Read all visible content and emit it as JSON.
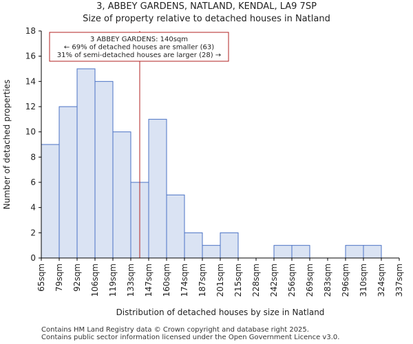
{
  "title_line1": "3, ABBEY GARDENS, NATLAND, KENDAL, LA9 7SP",
  "title_line2": "Size of property relative to detached houses in Natland",
  "footer_line1": "Contains HM Land Registry data © Crown copyright and database right 2025.",
  "footer_line2": "Contains public sector information licensed under the Open Government Licence v3.0.",
  "chart_data": {
    "type": "bar",
    "xlabel": "Distribution of detached houses by size in Natland",
    "ylabel": "Number of detached properties",
    "ylim": [
      0,
      18
    ],
    "yticks": [
      0,
      2,
      4,
      6,
      8,
      10,
      12,
      14,
      16,
      18
    ],
    "bin_edges": [
      65,
      79,
      92,
      106,
      119,
      133,
      147,
      160,
      174,
      187,
      201,
      215,
      228,
      242,
      256,
      269,
      283,
      296,
      310,
      324,
      337
    ],
    "tick_labels": [
      "65sqm",
      "79sqm",
      "92sqm",
      "106sqm",
      "119sqm",
      "133sqm",
      "147sqm",
      "160sqm",
      "174sqm",
      "187sqm",
      "201sqm",
      "215sqm",
      "228sqm",
      "242sqm",
      "256sqm",
      "269sqm",
      "283sqm",
      "296sqm",
      "310sqm",
      "324sqm",
      "337sqm"
    ],
    "values": [
      9,
      12,
      15,
      14,
      10,
      6,
      11,
      5,
      2,
      1,
      2,
      0,
      0,
      1,
      1,
      0,
      0,
      1,
      1,
      0
    ],
    "bar_fill": "#dae3f3",
    "bar_edge": "#4a72c4",
    "marker": {
      "value": 140,
      "color": "#b22222",
      "annotation": [
        "3 ABBEY GARDENS: 140sqm",
        "← 69% of detached houses are smaller (63)",
        "31% of semi-detached houses are larger (28) →"
      ]
    }
  }
}
